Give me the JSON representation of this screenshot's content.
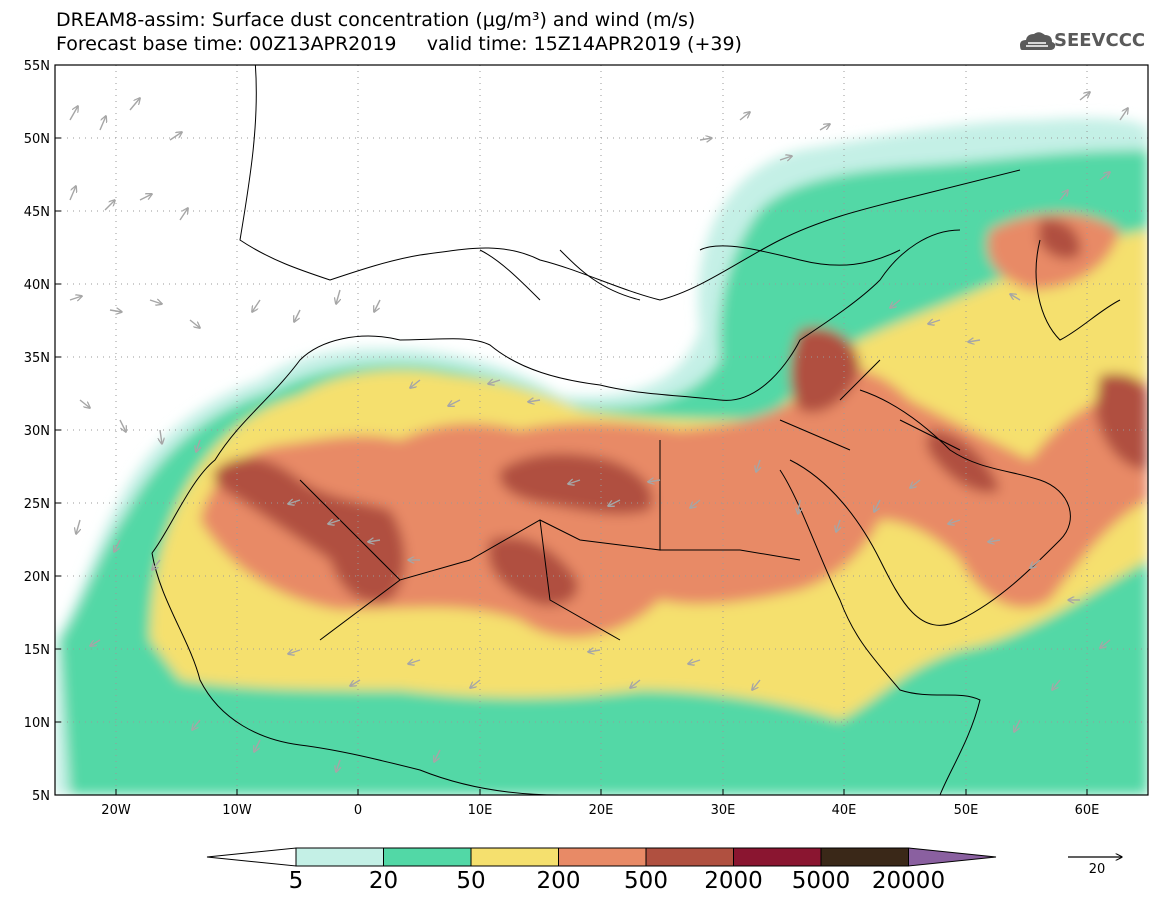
{
  "title": {
    "line1": "DREAM8-assim: Surface dust concentration (μg/m³) and wind (m/s)",
    "line2": "Forecast base time: 00Z13APR2019     valid time: 15Z14APR2019 (+39)"
  },
  "logo": {
    "text": "SEEVCCC",
    "icon": "cloud-logo-icon"
  },
  "map": {
    "lat_labels": [
      "55N",
      "50N",
      "45N",
      "40N",
      "35N",
      "30N",
      "25N",
      "20N",
      "15N",
      "10N",
      "5N"
    ],
    "lon_labels": [
      "20W",
      "10W",
      "0",
      "10E",
      "20E",
      "30E",
      "40E",
      "50E",
      "60E"
    ],
    "lat_range": [
      5,
      55
    ],
    "lon_range": [
      -25,
      65
    ],
    "graticule": "dotted",
    "wind_arrow_color": "#a6a6a6",
    "coastline_color": "#000000"
  },
  "colorbar": {
    "labels": [
      "5",
      "20",
      "50",
      "200",
      "500",
      "2000",
      "5000",
      "20000"
    ],
    "colors": [
      "#c4f0e6",
      "#52d8a6",
      "#f5e06e",
      "#e88a66",
      "#b05040",
      "#8a1530",
      "#3a2818",
      "#8a60a0"
    ],
    "lower_extend_color": "#ffffff"
  },
  "wind_reference": {
    "value": "20"
  }
}
